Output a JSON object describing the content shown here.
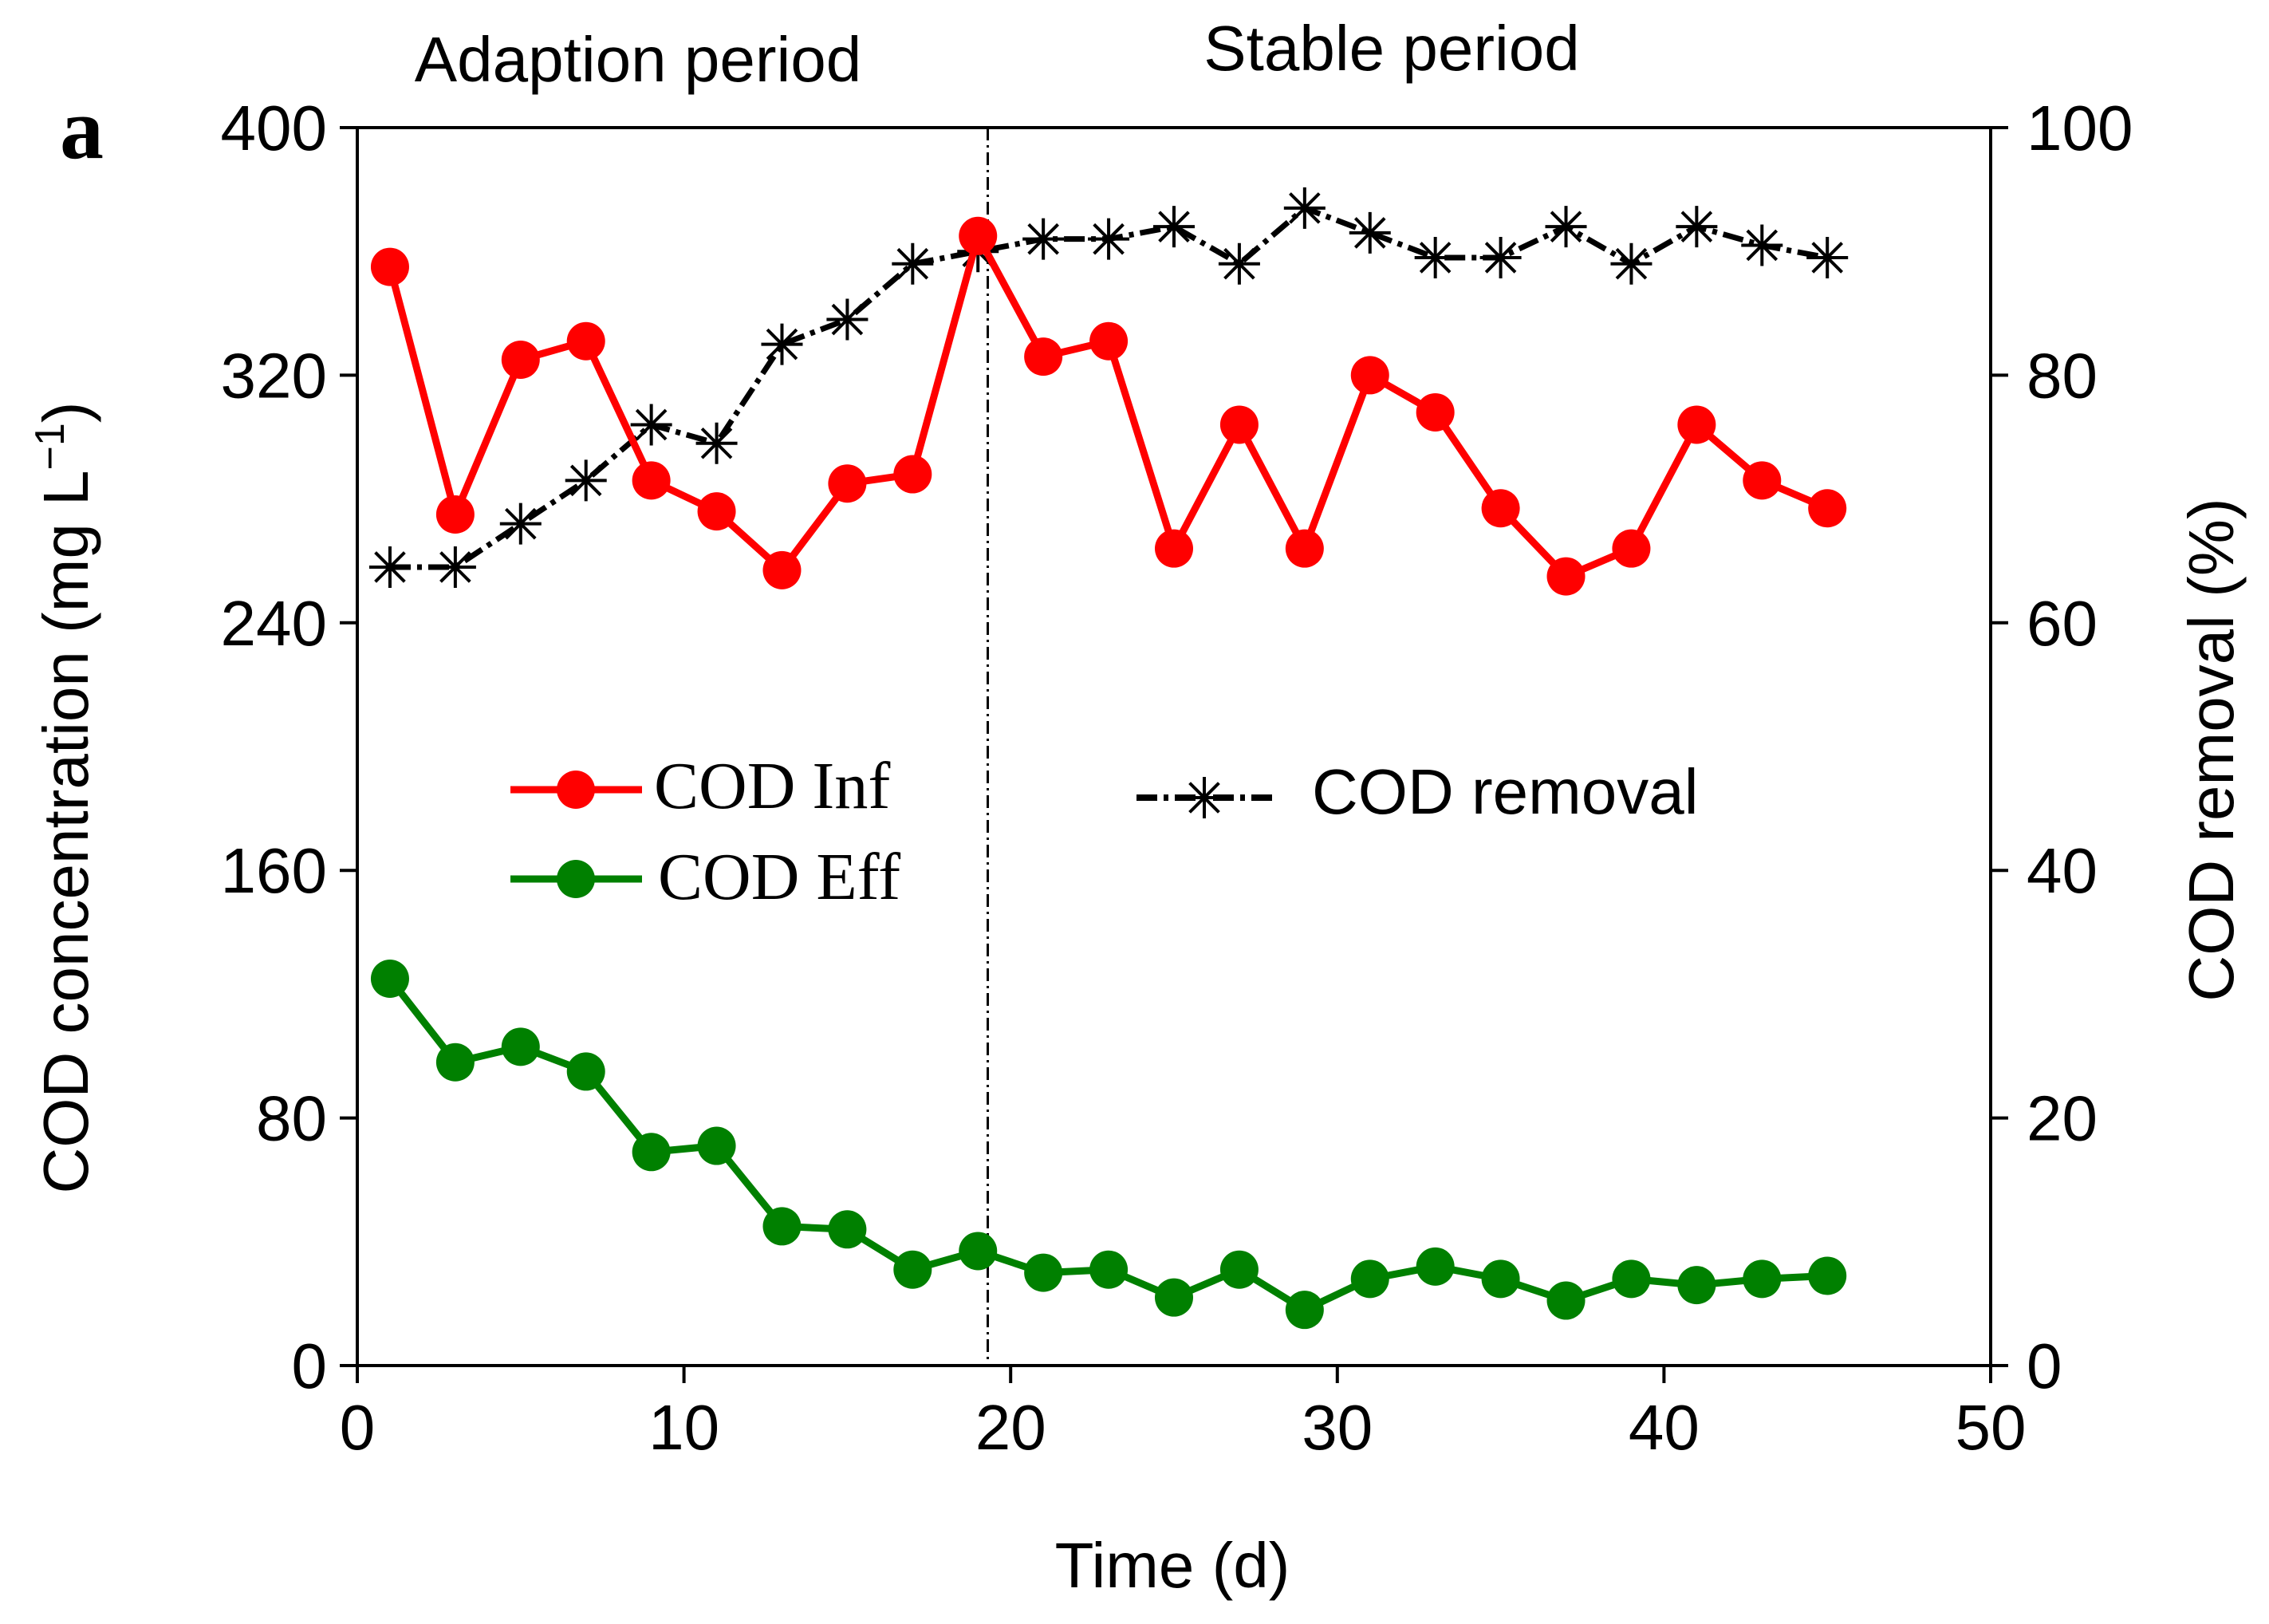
{
  "panel_label": "a",
  "periods": {
    "adaption": "Adaption period",
    "stable": "Stable period"
  },
  "colors": {
    "inf": "#ff0000",
    "eff": "#008000",
    "removal": "#000000",
    "axis": "#000000"
  },
  "chart_data": {
    "type": "line",
    "title": "",
    "xlabel": "Time (d)",
    "ylabel_left_main": "COD concentration (mg L",
    "ylabel_left_sup": "−1",
    "ylabel_left_close": ")",
    "ylabel_right": "COD removal (%)",
    "xlim": [
      0,
      50
    ],
    "ylim_left": [
      0,
      400
    ],
    "ylim_right": [
      0,
      100
    ],
    "xticks": [
      "0",
      "10",
      "20",
      "30",
      "40",
      "50"
    ],
    "yticks_left": [
      "0",
      "80",
      "160",
      "240",
      "320",
      "400"
    ],
    "yticks_right": [
      "0",
      "20",
      "40",
      "60",
      "80",
      "100"
    ],
    "period_divider_x": 19.3,
    "x": [
      1,
      3,
      5,
      7,
      9,
      11,
      13,
      15,
      17,
      19,
      21,
      23,
      25,
      27,
      29,
      31,
      33,
      35,
      37,
      39,
      41,
      43,
      45
    ],
    "series": [
      {
        "name": "COD Inf",
        "axis": "left",
        "marker": "circle",
        "values": [
          355,
          275,
          325,
          331,
          286,
          276,
          257,
          285,
          288,
          365,
          326,
          331,
          264,
          304,
          264,
          320,
          308,
          277,
          255,
          264,
          304,
          286,
          277
        ]
      },
      {
        "name": "COD Eff",
        "axis": "left",
        "marker": "circle",
        "values": [
          125,
          98,
          103,
          95,
          69,
          71,
          45,
          44,
          31,
          37,
          30,
          31,
          22,
          31,
          18,
          28,
          32,
          28,
          21,
          28,
          26,
          28,
          29
        ]
      },
      {
        "name": "COD removal",
        "axis": "right",
        "marker": "asterisk",
        "values": [
          64.5,
          64.5,
          68,
          71.5,
          76,
          74.5,
          82.5,
          84.5,
          89,
          90,
          91,
          91,
          92,
          89,
          93.5,
          91.5,
          89.5,
          89.5,
          92,
          89,
          92,
          90.5,
          89.5
        ]
      }
    ]
  }
}
